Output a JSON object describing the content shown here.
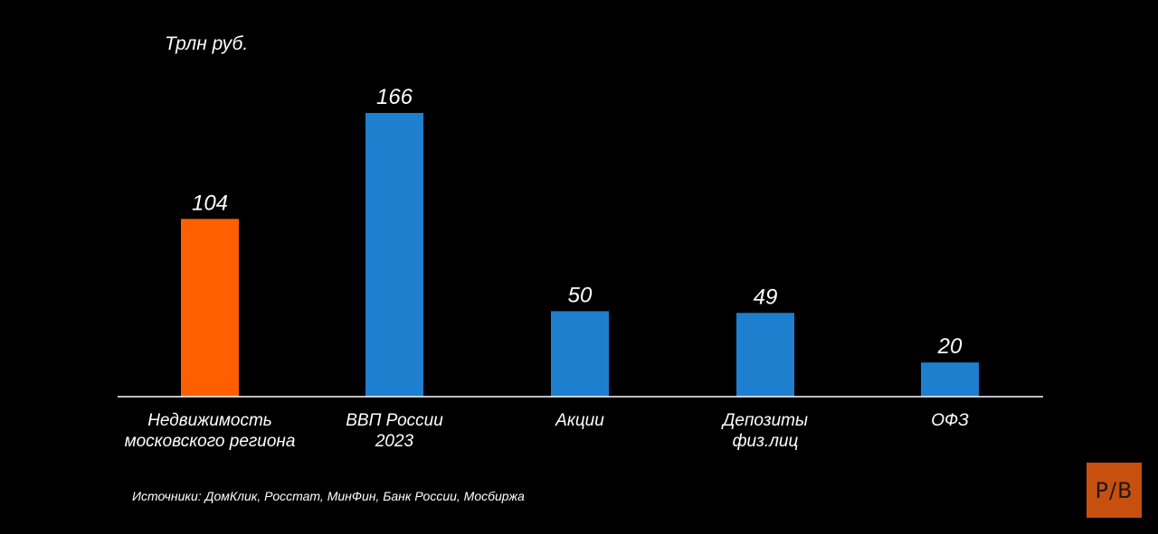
{
  "header": {
    "unit_label": "Трлн руб."
  },
  "footer": {
    "source": "Источники: ДомКлик, Росстат, МинФин, Банк России, Мосбиржа"
  },
  "logo": {
    "text": "Р/В",
    "color": "#c8500f"
  },
  "colors": {
    "highlight": "#ff5f00",
    "default": "#1f7fcf",
    "axis": "#ffffff"
  },
  "chart_data": {
    "type": "bar",
    "categories": [
      [
        "Недвижимость",
        "московского региона"
      ],
      [
        "ВВП России",
        "2023"
      ],
      [
        "Акции"
      ],
      [
        "Депозиты",
        "физ.лиц"
      ],
      [
        "ОФЗ"
      ]
    ],
    "values": [
      104,
      166,
      50,
      49,
      20
    ],
    "value_labels": [
      "104",
      "166",
      "50",
      "49",
      "20"
    ],
    "bar_colors": [
      "#ff5f00",
      "#1f7fcf",
      "#1f7fcf",
      "#1f7fcf",
      "#1f7fcf"
    ],
    "ylabel": "Трлн руб.",
    "ylim": [
      0,
      166
    ],
    "grid": false,
    "legend": "none"
  }
}
